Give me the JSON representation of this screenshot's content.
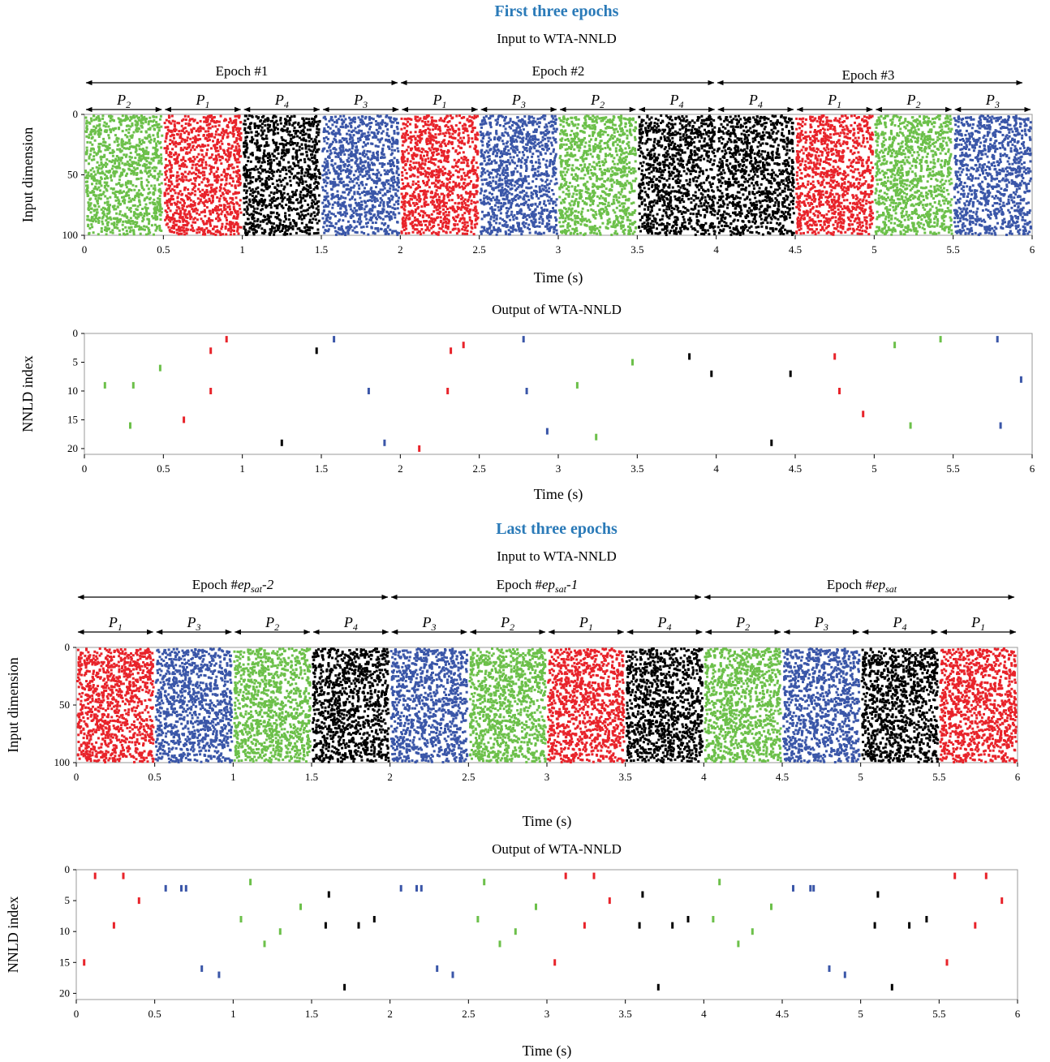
{
  "colors": {
    "P1": "#e8232a",
    "P2": "#6cc04a",
    "P3": "#3a56a8",
    "P4": "#000000",
    "title": "#2a7ab8"
  },
  "sections": [
    {
      "title": "First three epochs",
      "input_subtitle": "Input to WTA-NNLD",
      "output_subtitle": "Output of WTA-NNLD"
    },
    {
      "title": "Last three epochs",
      "input_subtitle": "Input to WTA-NNLD",
      "output_subtitle": "Output of WTA-NNLD"
    }
  ],
  "epoch_labels": [
    [
      "Epoch #1",
      "Epoch #2",
      "Epoch #3"
    ],
    [
      {
        "prefix": "Epoch #",
        "italic": "ep",
        "sub": "sat",
        "suffix": "-2"
      },
      {
        "prefix": "Epoch #",
        "italic": "ep",
        "sub": "sat",
        "suffix": "-1"
      },
      {
        "prefix": "Epoch #",
        "italic": "ep",
        "sub": "sat",
        "suffix": ""
      }
    ]
  ],
  "chart_data": [
    {
      "type": "scatter",
      "name": "input-first",
      "title": "Input to WTA-NNLD",
      "xlabel": "Time (s)",
      "ylabel": "Input dimension",
      "xlim": [
        0,
        6
      ],
      "ylim": [
        100,
        0
      ],
      "xticks": [
        "0",
        "0.5",
        "1",
        "1.5",
        "2",
        "2.5",
        "3",
        "3.5",
        "4",
        "4.5",
        "5",
        "5.5",
        "6"
      ],
      "yticks": [
        "0",
        "50",
        "100"
      ],
      "segments": [
        "P2",
        "P1",
        "P4",
        "P3",
        "P1",
        "P3",
        "P2",
        "P4",
        "P4",
        "P1",
        "P2",
        "P3"
      ],
      "segment_duration": 0.5
    },
    {
      "type": "scatter",
      "name": "output-first",
      "title": "Output of WTA-NNLD",
      "xlabel": "Time (s)",
      "ylabel": "NNLD index",
      "xlim": [
        0,
        6
      ],
      "ylim": [
        21,
        0
      ],
      "xticks": [
        "0",
        "0.5",
        "1",
        "1.5",
        "2",
        "2.5",
        "3",
        "3.5",
        "4",
        "4.5",
        "5",
        "5.5",
        "6"
      ],
      "yticks": [
        "0",
        "5",
        "10",
        "15",
        "20"
      ],
      "points": [
        [
          0.13,
          9,
          "P2"
        ],
        [
          0.31,
          9,
          "P2"
        ],
        [
          0.29,
          16,
          "P2"
        ],
        [
          0.48,
          6,
          "P2"
        ],
        [
          0.63,
          15,
          "P1"
        ],
        [
          0.8,
          3,
          "P1"
        ],
        [
          0.8,
          10,
          "P1"
        ],
        [
          0.9,
          1,
          "P1"
        ],
        [
          1.25,
          19,
          "P4"
        ],
        [
          1.47,
          3,
          "P4"
        ],
        [
          1.58,
          1,
          "P3"
        ],
        [
          1.8,
          10,
          "P3"
        ],
        [
          1.9,
          19,
          "P3"
        ],
        [
          2.12,
          20,
          "P1"
        ],
        [
          2.3,
          10,
          "P1"
        ],
        [
          2.32,
          3,
          "P1"
        ],
        [
          2.4,
          2,
          "P1"
        ],
        [
          2.78,
          1,
          "P3"
        ],
        [
          2.8,
          10,
          "P3"
        ],
        [
          2.93,
          17,
          "P3"
        ],
        [
          3.12,
          9,
          "P2"
        ],
        [
          3.24,
          18,
          "P2"
        ],
        [
          3.47,
          5,
          "P2"
        ],
        [
          3.83,
          4,
          "P4"
        ],
        [
          3.97,
          7,
          "P4"
        ],
        [
          4.35,
          19,
          "P4"
        ],
        [
          4.47,
          7,
          "P4"
        ],
        [
          4.75,
          4,
          "P1"
        ],
        [
          4.78,
          10,
          "P1"
        ],
        [
          4.93,
          14,
          "P1"
        ],
        [
          5.13,
          2,
          "P2"
        ],
        [
          5.23,
          16,
          "P2"
        ],
        [
          5.42,
          1,
          "P2"
        ],
        [
          5.78,
          1,
          "P3"
        ],
        [
          5.8,
          16,
          "P3"
        ],
        [
          5.93,
          8,
          "P3"
        ]
      ]
    },
    {
      "type": "scatter",
      "name": "input-last",
      "title": "Input to WTA-NNLD",
      "xlabel": "Time (s)",
      "ylabel": "Input dimension",
      "xlim": [
        0,
        6
      ],
      "ylim": [
        100,
        0
      ],
      "xticks": [
        "0",
        "0.5",
        "1",
        "1.5",
        "2",
        "2.5",
        "3",
        "3.5",
        "4",
        "4.5",
        "5",
        "5.5",
        "6"
      ],
      "yticks": [
        "0",
        "50",
        "100"
      ],
      "segments": [
        "P1",
        "P3",
        "P2",
        "P4",
        "P3",
        "P2",
        "P1",
        "P4",
        "P2",
        "P3",
        "P4",
        "P1"
      ],
      "segment_duration": 0.5
    },
    {
      "type": "scatter",
      "name": "output-last",
      "title": "Output of WTA-NNLD",
      "xlabel": "Time (s)",
      "ylabel": "NNLD index",
      "xlim": [
        0,
        6
      ],
      "ylim": [
        21,
        0
      ],
      "xticks": [
        "0",
        "0.5",
        "1",
        "1.5",
        "2",
        "2.5",
        "3",
        "3.5",
        "4",
        "4.5",
        "5",
        "5.5",
        "6"
      ],
      "yticks": [
        "0",
        "5",
        "10",
        "15",
        "20"
      ],
      "points": [
        [
          0.05,
          15,
          "P1"
        ],
        [
          0.12,
          1,
          "P1"
        ],
        [
          0.24,
          9,
          "P1"
        ],
        [
          0.3,
          1,
          "P1"
        ],
        [
          0.4,
          5,
          "P1"
        ],
        [
          0.57,
          3,
          "P3"
        ],
        [
          0.67,
          3,
          "P3"
        ],
        [
          0.7,
          3,
          "P3"
        ],
        [
          0.8,
          16,
          "P3"
        ],
        [
          0.91,
          17,
          "P3"
        ],
        [
          1.05,
          8,
          "P2"
        ],
        [
          1.11,
          2,
          "P2"
        ],
        [
          1.2,
          12,
          "P2"
        ],
        [
          1.3,
          10,
          "P2"
        ],
        [
          1.43,
          6,
          "P2"
        ],
        [
          1.59,
          9,
          "P4"
        ],
        [
          1.61,
          4,
          "P4"
        ],
        [
          1.71,
          19,
          "P4"
        ],
        [
          1.8,
          9,
          "P4"
        ],
        [
          1.9,
          8,
          "P4"
        ],
        [
          2.07,
          3,
          "P3"
        ],
        [
          2.17,
          3,
          "P3"
        ],
        [
          2.2,
          3,
          "P3"
        ],
        [
          2.3,
          16,
          "P3"
        ],
        [
          2.4,
          17,
          "P3"
        ],
        [
          2.56,
          8,
          "P2"
        ],
        [
          2.6,
          2,
          "P2"
        ],
        [
          2.7,
          12,
          "P2"
        ],
        [
          2.8,
          10,
          "P2"
        ],
        [
          2.93,
          6,
          "P2"
        ],
        [
          3.05,
          15,
          "P1"
        ],
        [
          3.12,
          1,
          "P1"
        ],
        [
          3.24,
          9,
          "P1"
        ],
        [
          3.3,
          1,
          "P1"
        ],
        [
          3.4,
          5,
          "P1"
        ],
        [
          3.59,
          9,
          "P4"
        ],
        [
          3.61,
          4,
          "P4"
        ],
        [
          3.71,
          19,
          "P4"
        ],
        [
          3.8,
          9,
          "P4"
        ],
        [
          3.9,
          8,
          "P4"
        ],
        [
          4.06,
          8,
          "P2"
        ],
        [
          4.1,
          2,
          "P2"
        ],
        [
          4.22,
          12,
          "P2"
        ],
        [
          4.31,
          10,
          "P2"
        ],
        [
          4.43,
          6,
          "P2"
        ],
        [
          4.57,
          3,
          "P3"
        ],
        [
          4.68,
          3,
          "P3"
        ],
        [
          4.7,
          3,
          "P3"
        ],
        [
          4.8,
          16,
          "P3"
        ],
        [
          4.9,
          17,
          "P3"
        ],
        [
          5.09,
          9,
          "P4"
        ],
        [
          5.11,
          4,
          "P4"
        ],
        [
          5.2,
          19,
          "P4"
        ],
        [
          5.31,
          9,
          "P4"
        ],
        [
          5.42,
          8,
          "P4"
        ],
        [
          5.55,
          15,
          "P1"
        ],
        [
          5.6,
          1,
          "P1"
        ],
        [
          5.73,
          9,
          "P1"
        ],
        [
          5.8,
          1,
          "P1"
        ],
        [
          5.9,
          5,
          "P1"
        ]
      ]
    }
  ]
}
